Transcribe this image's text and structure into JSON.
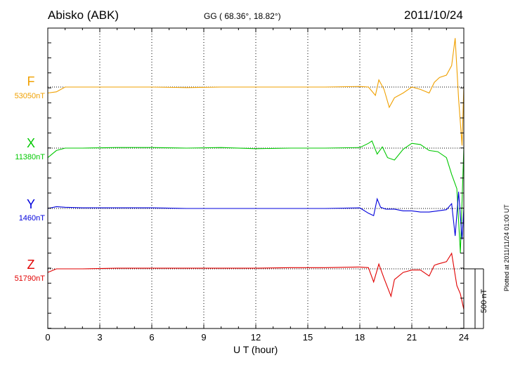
{
  "header": {
    "station": "Abisko (ABK)",
    "coords": "GG ( 68.36°,  18.82°)",
    "date": "2011/10/24"
  },
  "plotted_note": "Plotted at 2011/11/24 01:00 UT",
  "scale_bar_label": "500 nT",
  "chart_data": {
    "type": "line",
    "title": "Abisko (ABK)",
    "xlabel": "U T (hour)",
    "ylabel": "",
    "xlim": [
      0,
      24
    ],
    "x_ticks": [
      0,
      3,
      6,
      9,
      12,
      15,
      18,
      21,
      24
    ],
    "y_units": "nT",
    "scale_bar_nT": 500,
    "grid": true,
    "series": [
      {
        "name": "F",
        "baseline_label": "53050nT",
        "baseline": 53050,
        "color": "#f0a000",
        "x": [
          0,
          0.5,
          1,
          2,
          4,
          6,
          8,
          10,
          12,
          14,
          16,
          18,
          18.5,
          18.9,
          19.1,
          19.4,
          19.7,
          20.0,
          20.5,
          21,
          21.5,
          22,
          22.3,
          22.6,
          23.0,
          23.3,
          23.5,
          23.7,
          23.9,
          24
        ],
        "values": [
          53000,
          53010,
          53050,
          53050,
          53050,
          53050,
          53045,
          53050,
          53050,
          53050,
          53050,
          53055,
          53050,
          52980,
          53110,
          53030,
          52880,
          52960,
          53000,
          53050,
          53030,
          53000,
          53090,
          53130,
          53150,
          53230,
          53460,
          52950,
          52560,
          53050
        ]
      },
      {
        "name": "X",
        "baseline_label": "11380nT",
        "baseline": 11380,
        "color": "#00c800",
        "x": [
          0,
          0.5,
          1,
          2,
          4,
          6,
          8,
          10,
          12,
          14,
          16,
          18,
          18.5,
          18.7,
          19.0,
          19.3,
          19.6,
          20.0,
          20.5,
          21,
          21.5,
          22,
          22.5,
          23.0,
          23.3,
          23.6,
          23.8,
          24
        ],
        "values": [
          11300,
          11360,
          11380,
          11380,
          11385,
          11385,
          11380,
          11385,
          11375,
          11380,
          11380,
          11385,
          11420,
          11440,
          11330,
          11390,
          11300,
          11280,
          11370,
          11420,
          11410,
          11360,
          11350,
          11300,
          11160,
          11040,
          10500,
          11380
        ]
      },
      {
        "name": "Y",
        "baseline_label": "1460nT",
        "baseline": 1460,
        "color": "#0000dc",
        "x": [
          0,
          0.5,
          1,
          2,
          4,
          6,
          8,
          10,
          12,
          14,
          16,
          18,
          18.5,
          18.8,
          19.0,
          19.2,
          19.5,
          20.0,
          20.5,
          21,
          21.5,
          22,
          22.5,
          23.0,
          23.3,
          23.5,
          23.7,
          23.9,
          24
        ],
        "values": [
          1460,
          1475,
          1470,
          1465,
          1465,
          1465,
          1460,
          1460,
          1460,
          1460,
          1460,
          1465,
          1420,
          1400,
          1540,
          1470,
          1455,
          1455,
          1440,
          1440,
          1430,
          1430,
          1440,
          1450,
          1500,
          1230,
          1600,
          1200,
          1460
        ]
      },
      {
        "name": "Z",
        "baseline_label": "51790nT",
        "baseline": 51790,
        "color": "#e10000",
        "x": [
          0,
          0.5,
          1,
          2,
          4,
          6,
          8,
          10,
          12,
          14,
          16,
          18,
          18.5,
          18.8,
          19.1,
          19.4,
          19.8,
          20.0,
          20.5,
          21,
          21.5,
          22,
          22.3,
          22.5,
          23.0,
          23.3,
          23.6,
          23.8,
          24
        ],
        "values": [
          51760,
          51790,
          51790,
          51790,
          51795,
          51795,
          51795,
          51795,
          51795,
          51800,
          51800,
          51805,
          51800,
          51680,
          51830,
          51710,
          51560,
          51700,
          51760,
          51780,
          51780,
          51730,
          51820,
          51830,
          51850,
          51920,
          51650,
          51580,
          51450
        ]
      }
    ]
  }
}
